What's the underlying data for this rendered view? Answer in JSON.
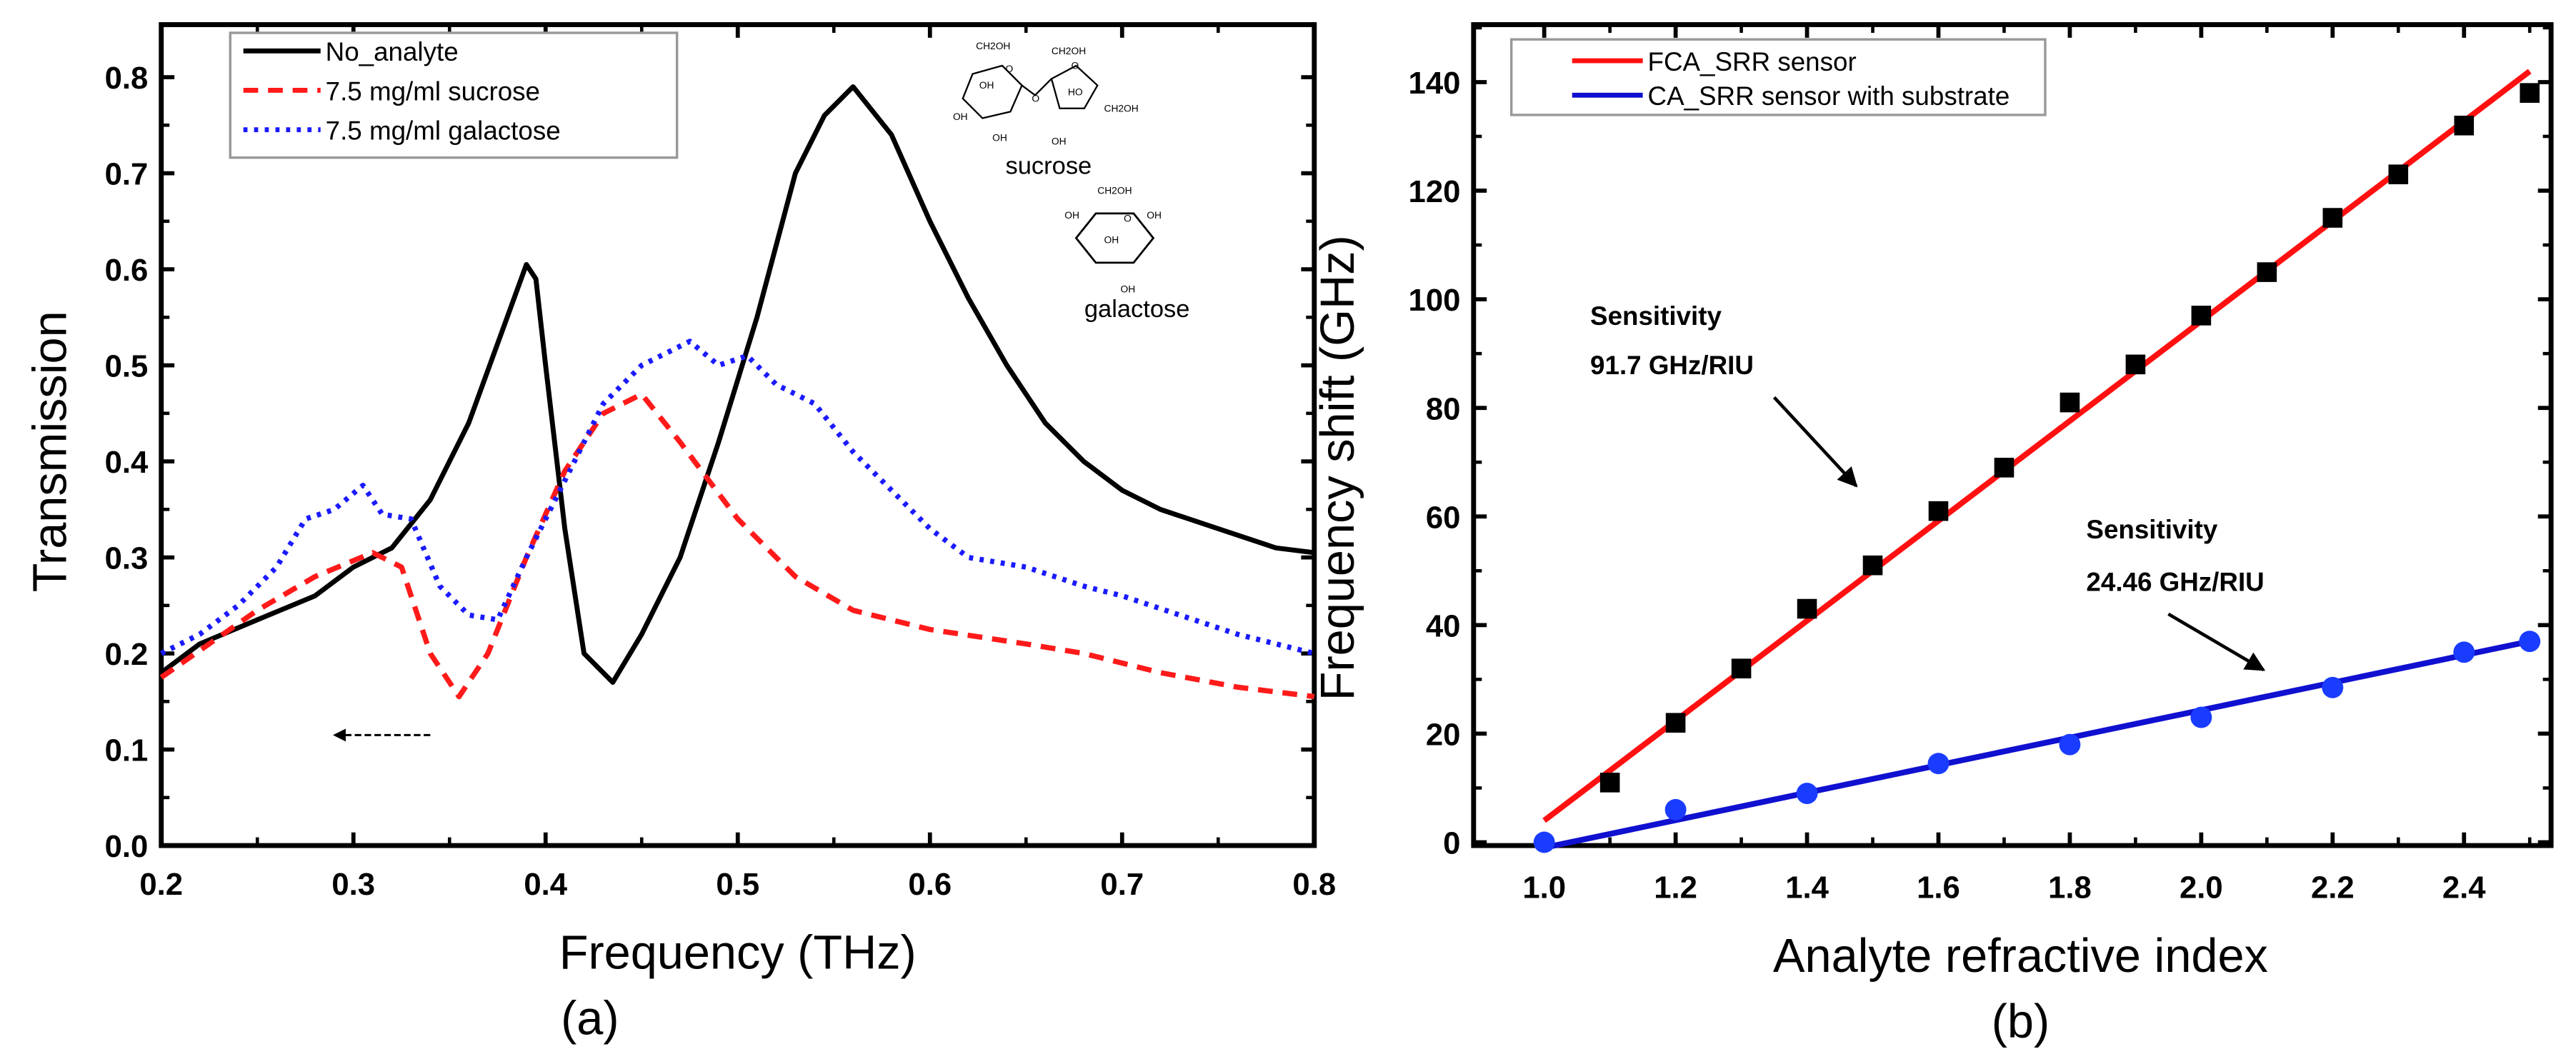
{
  "chart_data": [
    {
      "type": "line",
      "title": "",
      "panel_label": "(a)",
      "xlabel": "Frequency (THz)",
      "ylabel": "Transmission",
      "xlim": [
        0.2,
        0.8
      ],
      "ylim": [
        0.0,
        0.85
      ],
      "xticks": [
        "0.2",
        "0.3",
        "0.4",
        "0.5",
        "0.6",
        "0.7",
        "0.8"
      ],
      "yticks": [
        "0.0",
        "0.1",
        "0.2",
        "0.3",
        "0.4",
        "0.5",
        "0.6",
        "0.7",
        "0.8"
      ],
      "grid": false,
      "legend_position": "top-left",
      "series": [
        {
          "name": "No_analyte",
          "color": "#000000",
          "style": "solid",
          "x": [
            0.2,
            0.22,
            0.25,
            0.28,
            0.3,
            0.32,
            0.34,
            0.36,
            0.38,
            0.39,
            0.395,
            0.4,
            0.41,
            0.42,
            0.435,
            0.45,
            0.47,
            0.49,
            0.51,
            0.53,
            0.545,
            0.56,
            0.58,
            0.6,
            0.62,
            0.64,
            0.66,
            0.68,
            0.7,
            0.72,
            0.75,
            0.78,
            0.8
          ],
          "y": [
            0.18,
            0.21,
            0.235,
            0.26,
            0.29,
            0.31,
            0.36,
            0.44,
            0.55,
            0.605,
            0.59,
            0.5,
            0.33,
            0.2,
            0.17,
            0.22,
            0.3,
            0.42,
            0.55,
            0.7,
            0.76,
            0.79,
            0.74,
            0.65,
            0.57,
            0.5,
            0.44,
            0.4,
            0.37,
            0.35,
            0.33,
            0.31,
            0.305
          ]
        },
        {
          "name": "7.5 mg/ml sucrose",
          "color": "#ff1a1a",
          "style": "dashed",
          "x": [
            0.2,
            0.25,
            0.28,
            0.31,
            0.325,
            0.34,
            0.355,
            0.37,
            0.39,
            0.41,
            0.43,
            0.45,
            0.47,
            0.5,
            0.53,
            0.56,
            0.6,
            0.65,
            0.68,
            0.72,
            0.76,
            0.8
          ],
          "y": [
            0.175,
            0.245,
            0.28,
            0.305,
            0.29,
            0.2,
            0.155,
            0.2,
            0.3,
            0.39,
            0.45,
            0.47,
            0.42,
            0.34,
            0.28,
            0.245,
            0.225,
            0.21,
            0.2,
            0.18,
            0.165,
            0.155
          ]
        },
        {
          "name": "7.5 mg/ml galactose",
          "color": "#1a1aff",
          "style": "dotted",
          "x": [
            0.2,
            0.22,
            0.24,
            0.26,
            0.275,
            0.29,
            0.305,
            0.315,
            0.33,
            0.345,
            0.36,
            0.375,
            0.39,
            0.41,
            0.43,
            0.45,
            0.475,
            0.49,
            0.505,
            0.52,
            0.54,
            0.56,
            0.58,
            0.6,
            0.62,
            0.65,
            0.68,
            0.7,
            0.73,
            0.76,
            0.8
          ],
          "y": [
            0.2,
            0.22,
            0.25,
            0.29,
            0.34,
            0.35,
            0.375,
            0.345,
            0.34,
            0.27,
            0.24,
            0.235,
            0.3,
            0.38,
            0.46,
            0.5,
            0.525,
            0.5,
            0.51,
            0.48,
            0.46,
            0.41,
            0.37,
            0.33,
            0.3,
            0.29,
            0.27,
            0.26,
            0.24,
            0.22,
            0.2
          ]
        }
      ],
      "annotations": {
        "arrow": {
          "from": [
            0.34,
            0.115
          ],
          "to": [
            0.29,
            0.115
          ],
          "style": "dashed"
        },
        "molecules": [
          {
            "name": "sucrose",
            "labels": [
              "CH2OH",
              "O",
              "OH",
              "OH",
              "OH",
              "O",
              "CH2OH",
              "O",
              "HO",
              "CH2OH",
              "OH"
            ]
          },
          {
            "name": "galactose",
            "labels": [
              "CH2OH",
              "OH",
              "O",
              "OH",
              "OH",
              "OH"
            ]
          }
        ]
      }
    },
    {
      "type": "scatter",
      "title": "",
      "panel_label": "(b)",
      "xlabel": "Analyte refractive index",
      "ylabel": "Frequency shift (GHz)",
      "xlim": [
        0.95,
        2.55
      ],
      "ylim": [
        0,
        148
      ],
      "xticks": [
        "1.0",
        "1.2",
        "1.4",
        "1.6",
        "1.8",
        "2.0",
        "2.2",
        "2.4"
      ],
      "yticks": [
        "0",
        "20",
        "40",
        "60",
        "80",
        "100",
        "120",
        "140"
      ],
      "grid": false,
      "legend_position": "top-left",
      "series": [
        {
          "name": "FCA_SRR sensor",
          "color": "#ff1010",
          "marker": "square",
          "marker_color": "#000000",
          "x": [
            1.1,
            1.2,
            1.3,
            1.4,
            1.5,
            1.6,
            1.7,
            1.8,
            1.9,
            2.0,
            2.1,
            2.2,
            2.3,
            2.4,
            2.5
          ],
          "y": [
            11,
            22,
            32,
            43,
            51,
            61,
            69,
            81,
            88,
            97,
            105,
            115,
            123,
            132,
            138
          ],
          "fit": {
            "x": [
              1.0,
              2.5
            ],
            "y": [
              4,
              142
            ]
          }
        },
        {
          "name": "CA_SRR sensor with substrate",
          "color": "#1010d0",
          "marker": "circle",
          "marker_color": "#1a3cff",
          "x": [
            1.0,
            1.2,
            1.4,
            1.6,
            1.8,
            2.0,
            2.2,
            2.4,
            2.5
          ],
          "y": [
            0,
            6,
            9,
            14.5,
            18,
            23,
            28.5,
            35,
            37
          ],
          "fit": {
            "x": [
              1.0,
              2.5
            ],
            "y": [
              -1,
              37
            ]
          }
        }
      ],
      "annotations": [
        {
          "line1": "Sensitivity",
          "line2": "91.7 GHz/RIU"
        },
        {
          "line1": "Sensitivity",
          "line2": "24.46 GHz/RIU"
        }
      ]
    }
  ]
}
